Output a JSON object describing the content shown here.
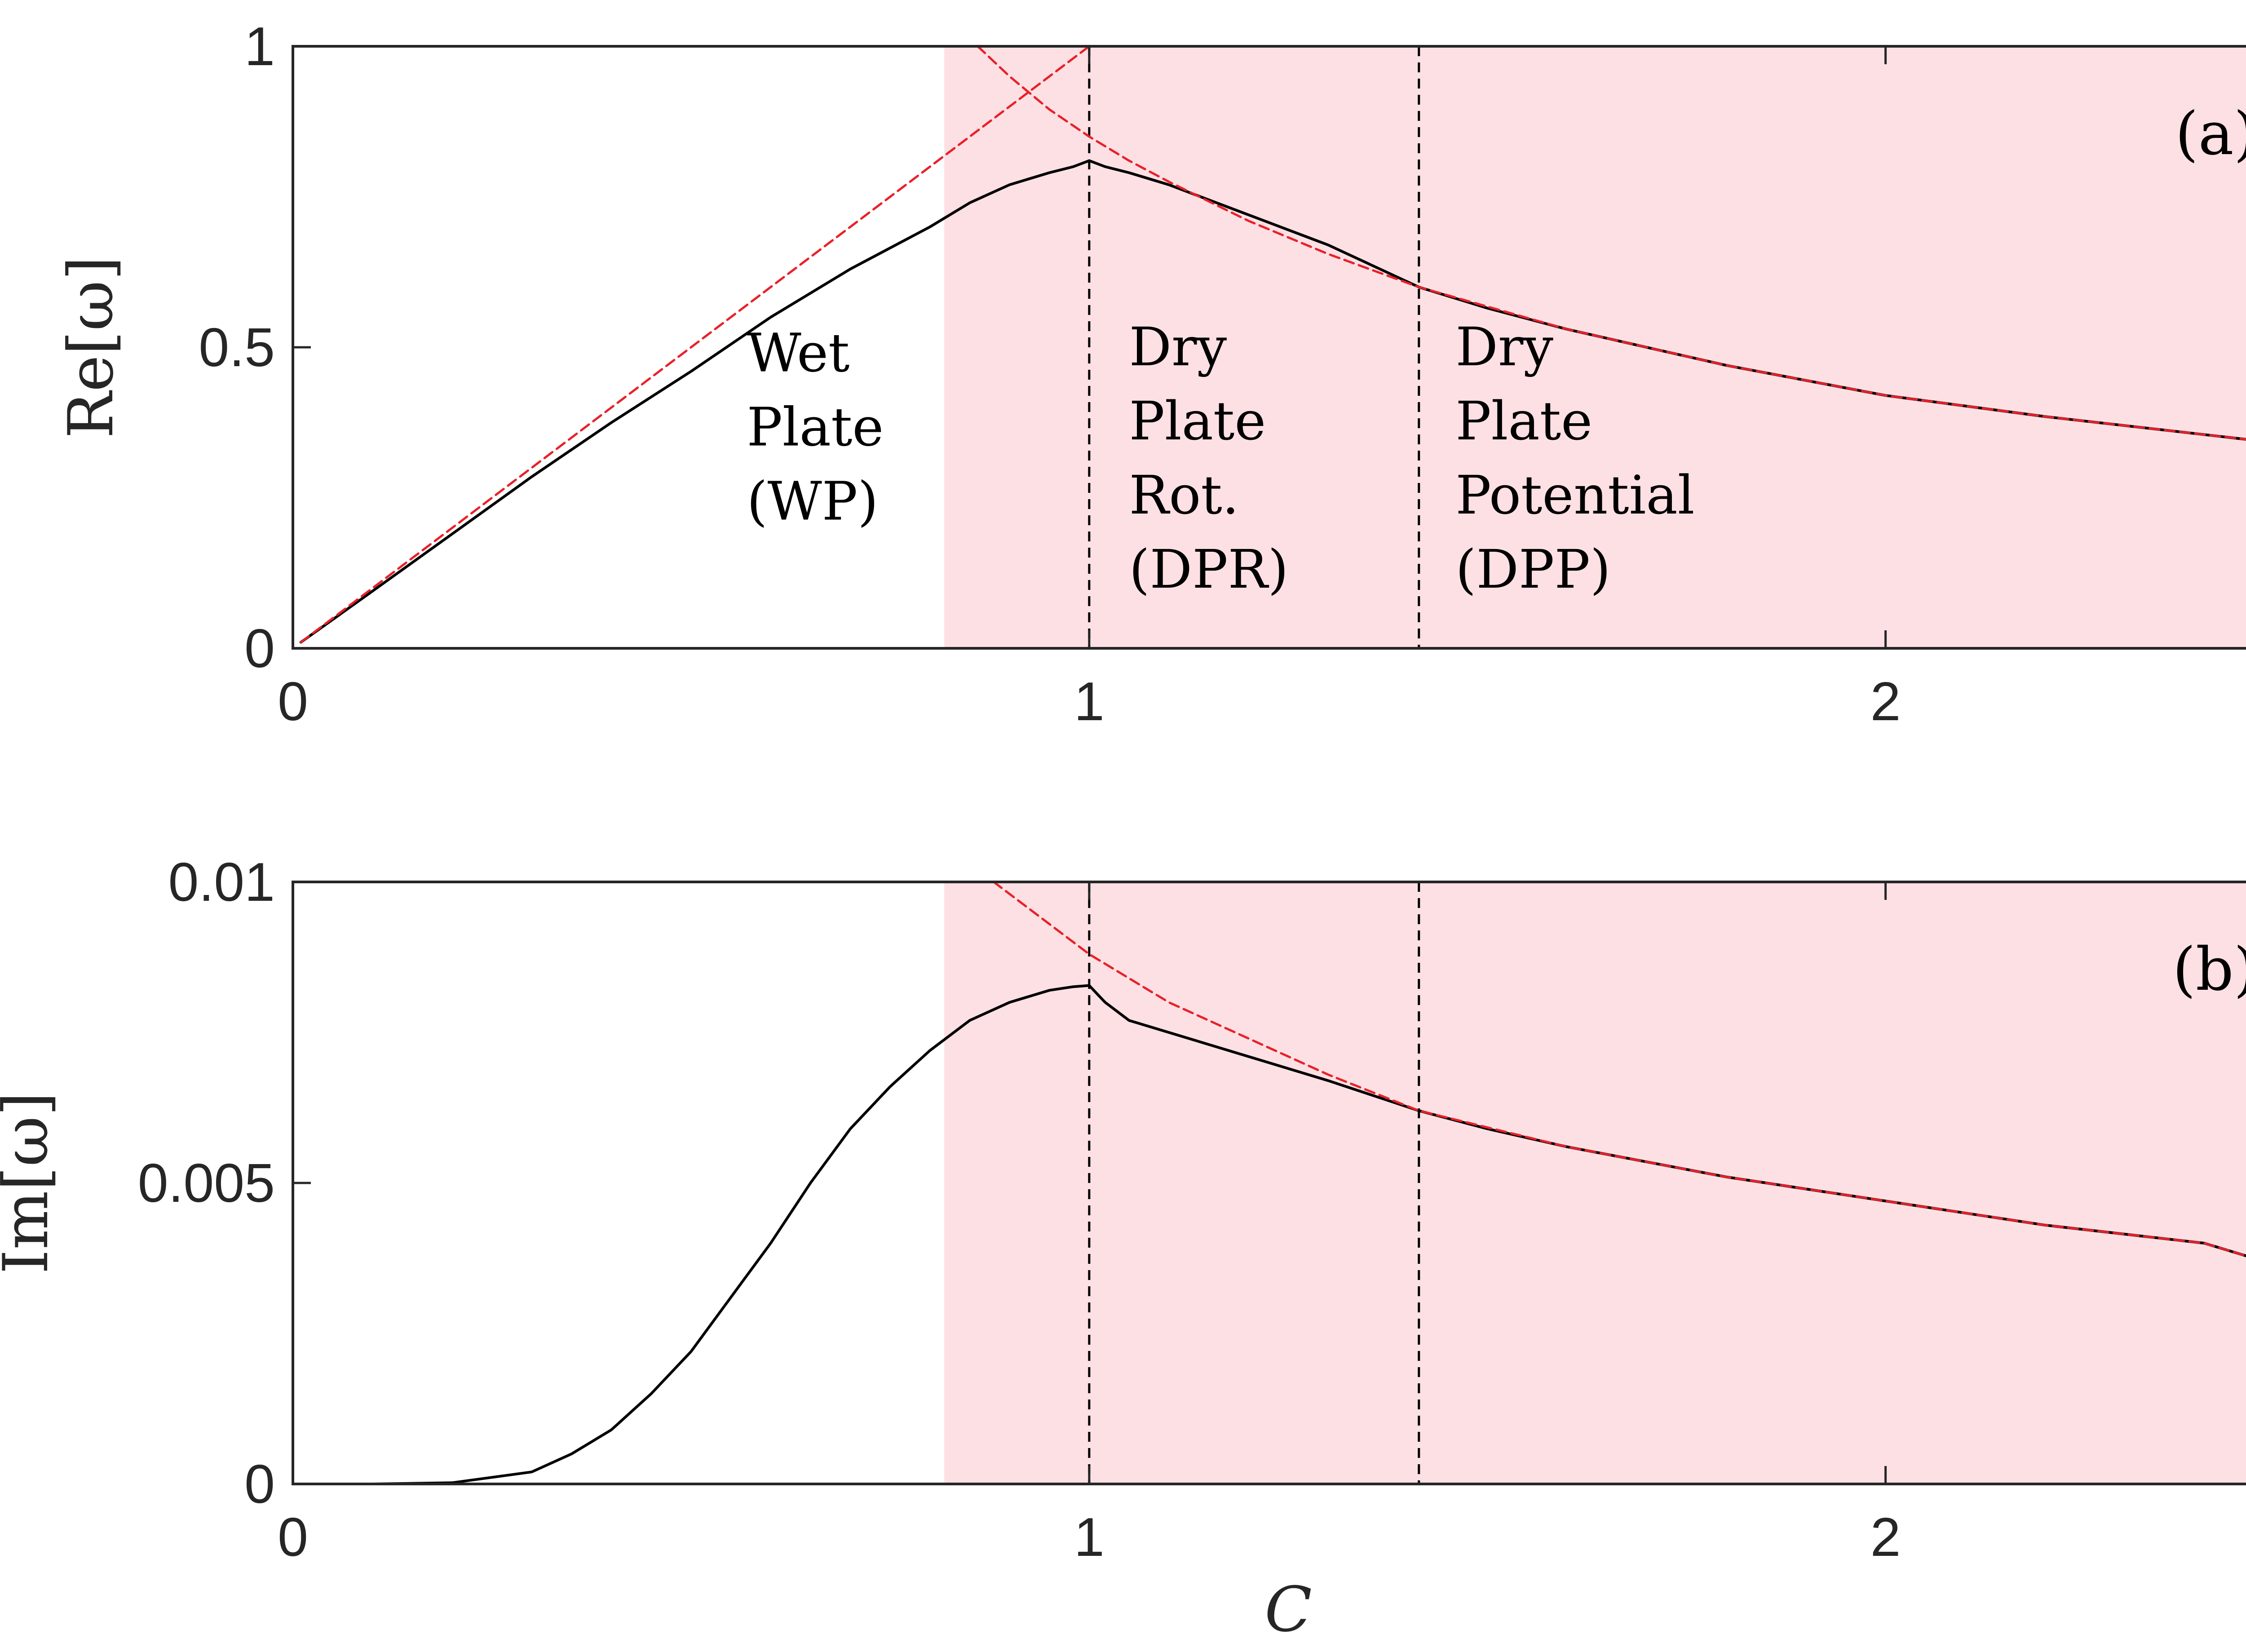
{
  "chart_data": [
    {
      "type": "line",
      "panel_label": "(a)",
      "xlabel": "C",
      "ylabel": "Re[ω]",
      "xlim": [
        0,
        2.5
      ],
      "ylim": [
        0,
        1
      ],
      "xticks": [
        0,
        1,
        2
      ],
      "xtick_labels": [
        "0",
        "1",
        "2"
      ],
      "yticks": [
        0,
        0.5,
        1
      ],
      "ytick_labels": [
        "0",
        "0.5",
        "1"
      ],
      "shaded_region": {
        "x_start": 0.818,
        "x_end": 2.5,
        "color": "#fde0e4"
      },
      "vlines": [
        1.0,
        1.414
      ],
      "region_labels": [
        {
          "lines": [
            "Wet",
            "Plate",
            "(WP)"
          ],
          "x": 0.57,
          "y": 0.46
        },
        {
          "lines": [
            "Dry",
            "Plate",
            "Rot.",
            "(DPR)"
          ],
          "x": 1.05,
          "y": 0.47
        },
        {
          "lines": [
            "Dry",
            "Plate",
            "Potential",
            "(DPP)"
          ],
          "x": 1.46,
          "y": 0.47
        }
      ],
      "series": [
        {
          "name": "full solution",
          "color": "#000000",
          "style": "solid",
          "x": [
            0.01,
            0.1,
            0.2,
            0.3,
            0.4,
            0.5,
            0.6,
            0.7,
            0.8,
            0.85,
            0.9,
            0.95,
            0.98,
            1.0,
            1.02,
            1.05,
            1.1,
            1.15,
            1.2,
            1.3,
            1.414,
            1.5,
            1.6,
            1.8,
            2.0,
            2.2,
            2.4,
            2.5
          ],
          "y": [
            0.01,
            0.095,
            0.19,
            0.285,
            0.375,
            0.46,
            0.55,
            0.63,
            0.7,
            0.74,
            0.77,
            0.79,
            0.8,
            0.81,
            0.8,
            0.79,
            0.77,
            0.745,
            0.72,
            0.67,
            0.6,
            0.565,
            0.53,
            0.47,
            0.42,
            0.385,
            0.355,
            0.34
          ]
        },
        {
          "name": "asymptote WP",
          "color": "#e8212a",
          "style": "dashed",
          "x": [
            0.01,
            1.0
          ],
          "y": [
            0.01,
            1.0
          ]
        },
        {
          "name": "asymptote dry",
          "color": "#e8212a",
          "style": "dashed",
          "x": [
            0.86,
            0.9,
            0.95,
            1.0,
            1.05,
            1.1,
            1.2,
            1.3,
            1.414,
            1.6,
            1.8,
            2.0,
            2.2,
            2.4,
            2.5
          ],
          "y": [
            1.0,
            0.95,
            0.895,
            0.85,
            0.81,
            0.775,
            0.71,
            0.655,
            0.6,
            0.53,
            0.47,
            0.42,
            0.385,
            0.355,
            0.34
          ]
        }
      ]
    },
    {
      "type": "line",
      "panel_label": "(b)",
      "xlabel": "C",
      "ylabel": "Im[ω]",
      "xlim": [
        0,
        2.5
      ],
      "ylim": [
        0,
        0.01
      ],
      "xticks": [
        0,
        1,
        2
      ],
      "xtick_labels": [
        "0",
        "1",
        "2"
      ],
      "yticks": [
        0,
        0.005,
        0.01
      ],
      "ytick_labels": [
        "0",
        "0.005",
        "0.01"
      ],
      "shaded_region": {
        "x_start": 0.818,
        "x_end": 2.5,
        "color": "#fde0e4"
      },
      "vlines": [
        1.0,
        1.414
      ],
      "series": [
        {
          "name": "full solution",
          "color": "#000000",
          "style": "solid",
          "x": [
            0.0,
            0.1,
            0.2,
            0.3,
            0.35,
            0.4,
            0.45,
            0.5,
            0.55,
            0.6,
            0.65,
            0.7,
            0.75,
            0.8,
            0.85,
            0.9,
            0.95,
            0.98,
            1.0,
            1.02,
            1.05,
            1.1,
            1.2,
            1.3,
            1.414,
            1.5,
            1.6,
            1.8,
            2.0,
            2.2,
            2.4,
            2.5
          ],
          "y": [
            0.0,
            0.0,
            2e-05,
            0.0002,
            0.0005,
            0.0009,
            0.0015,
            0.0022,
            0.0031,
            0.004,
            0.005,
            0.0059,
            0.0066,
            0.0072,
            0.0077,
            0.008,
            0.0082,
            0.00826,
            0.00828,
            0.008,
            0.0077,
            0.0075,
            0.0071,
            0.0067,
            0.0062,
            0.0059,
            0.0056,
            0.0051,
            0.0047,
            0.0043,
            0.004,
            0.0036
          ]
        },
        {
          "name": "asymptote dry",
          "color": "#e8212a",
          "style": "dashed",
          "x": [
            0.88,
            0.9,
            0.95,
            1.0,
            1.05,
            1.1,
            1.2,
            1.3,
            1.414,
            1.6,
            1.8,
            2.0,
            2.2,
            2.4,
            2.5
          ],
          "y": [
            0.01,
            0.0098,
            0.0093,
            0.0088,
            0.0084,
            0.008,
            0.0074,
            0.0068,
            0.0062,
            0.0056,
            0.0051,
            0.0047,
            0.0043,
            0.004,
            0.0036
          ]
        }
      ]
    }
  ]
}
